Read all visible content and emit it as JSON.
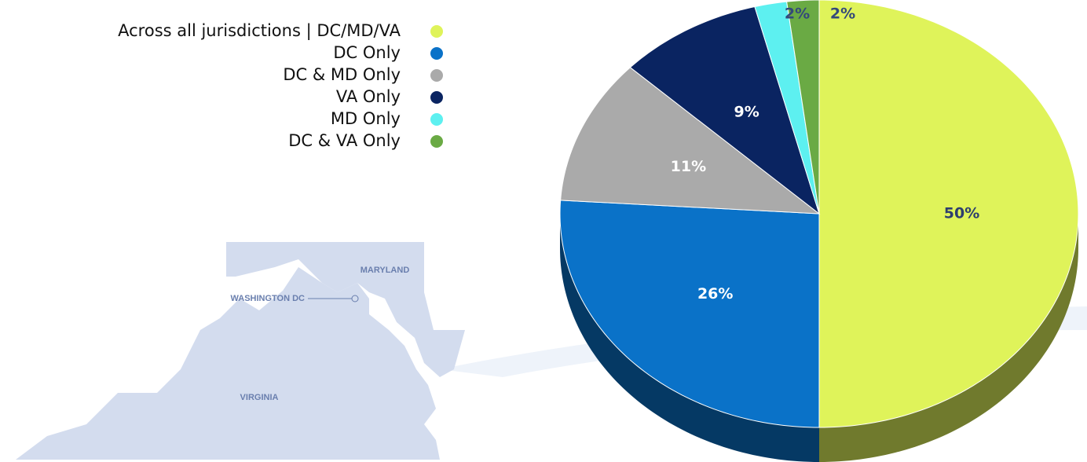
{
  "chart_data": {
    "type": "pie",
    "categories": [
      "Across all jurisdictions | DC/MD/VA",
      "DC Only",
      "DC & MD Only",
      "VA Only",
      "MD Only",
      "DC & VA Only"
    ],
    "values": [
      50,
      26,
      11,
      9,
      2,
      2
    ],
    "value_labels": [
      "50%",
      "26%",
      "11%",
      "9%",
      "2%",
      "2%"
    ],
    "colors": [
      "#dff35a",
      "#0a72c8",
      "#aaaaaa",
      "#0a2461",
      "#5df0f0",
      "#6aaa44"
    ],
    "legend": "top-left",
    "map_labels": [
      "MARYLAND",
      "WASHINGTON DC",
      "VIRGINIA"
    ]
  }
}
